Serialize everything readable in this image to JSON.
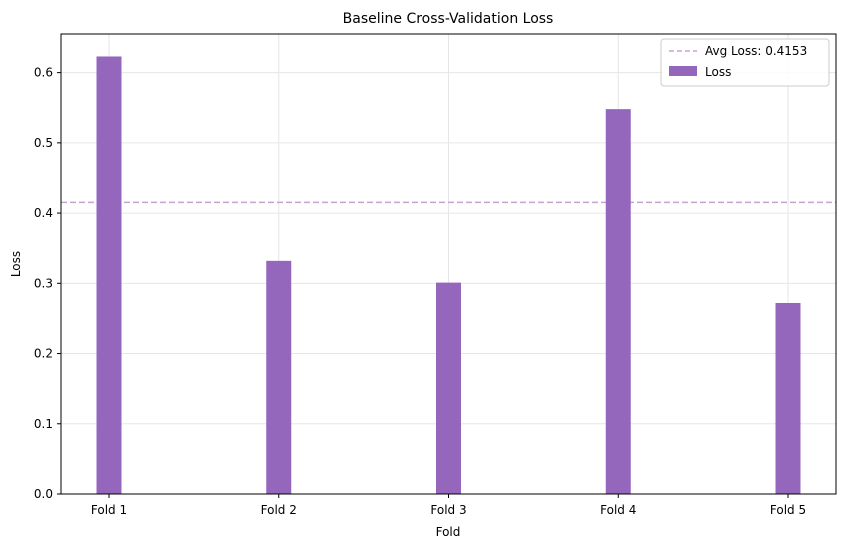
{
  "chart_data": {
    "type": "bar",
    "title": "Baseline Cross-Validation Loss",
    "xlabel": "Fold",
    "ylabel": "Loss",
    "categories": [
      "Fold 1",
      "Fold 2",
      "Fold 3",
      "Fold 4",
      "Fold 5"
    ],
    "series": [
      {
        "name": "Loss",
        "values": [
          0.623,
          0.332,
          0.301,
          0.548,
          0.272
        ],
        "color": "#9467bd"
      }
    ],
    "reference_line": {
      "label": "Avg Loss: 0.4153",
      "value": 0.4153,
      "color": "#c5a3cf",
      "style": "dashed"
    },
    "ylim": [
      0,
      0.655
    ],
    "yticks": [
      "0.0",
      "0.1",
      "0.2",
      "0.3",
      "0.4",
      "0.5",
      "0.6"
    ],
    "grid": true,
    "legend_position": "top-right"
  }
}
